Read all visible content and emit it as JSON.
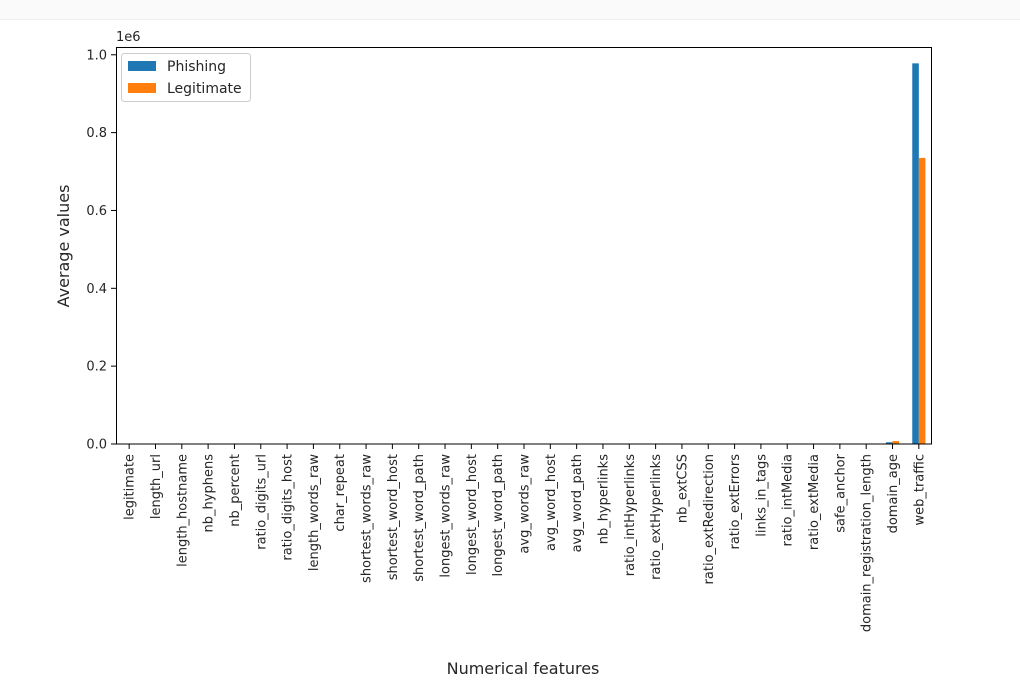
{
  "chart_data": {
    "type": "bar",
    "title": "",
    "xlabel": "Numerical features",
    "ylabel": "Average values",
    "y_offset_label": "1e6",
    "ylim": [
      0,
      1.02
    ],
    "yticks": [
      "0.0",
      "0.2",
      "0.4",
      "0.6",
      "0.8",
      "1.0"
    ],
    "ytick_values": [
      0,
      0.2,
      0.4,
      0.6,
      0.8,
      1.0
    ],
    "grid": false,
    "legend_position": "top-left",
    "categories": [
      "legitimate",
      "length_url",
      "length_hostname",
      "nb_hyphens",
      "nb_percent",
      "ratio_digits_url",
      "ratio_digits_host",
      "length_words_raw",
      "char_repeat",
      "shortest_words_raw",
      "shortest_word_host",
      "shortest_word_path",
      "longest_words_raw",
      "longest_word_host",
      "longest_word_path",
      "avg_words_raw",
      "avg_word_host",
      "avg_word_path",
      "nb_hyperlinks",
      "ratio_intHyperlinks",
      "ratio_extHyperlinks",
      "nb_extCSS",
      "ratio_extRedirection",
      "ratio_extErrors",
      "links_in_tags",
      "ratio_intMedia",
      "ratio_extMedia",
      "safe_anchor",
      "domain_registration_length",
      "domain_age",
      "web_traffic"
    ],
    "series": [
      {
        "name": "Phishing",
        "color": "#1f77b4",
        "values": [
          0,
          6e-05,
          2e-05,
          0,
          0,
          0,
          0,
          1e-05,
          0,
          0,
          0,
          0,
          2e-05,
          0,
          1e-05,
          0,
          0,
          0,
          4e-05,
          0,
          0,
          0,
          0,
          0,
          5e-05,
          4e-05,
          3e-05,
          4e-05,
          0.00018,
          0.0045,
          0.978
        ]
      },
      {
        "name": "Legitimate",
        "color": "#ff7f0e",
        "values": [
          0,
          5e-05,
          2e-05,
          0,
          0,
          0,
          0,
          1e-05,
          0,
          0,
          0,
          0,
          1e-05,
          0,
          1e-05,
          0,
          0,
          0,
          9e-05,
          0,
          0,
          0,
          0,
          0,
          6e-05,
          5e-05,
          3e-05,
          4e-05,
          0.00024,
          0.0075,
          0.735
        ]
      }
    ]
  }
}
